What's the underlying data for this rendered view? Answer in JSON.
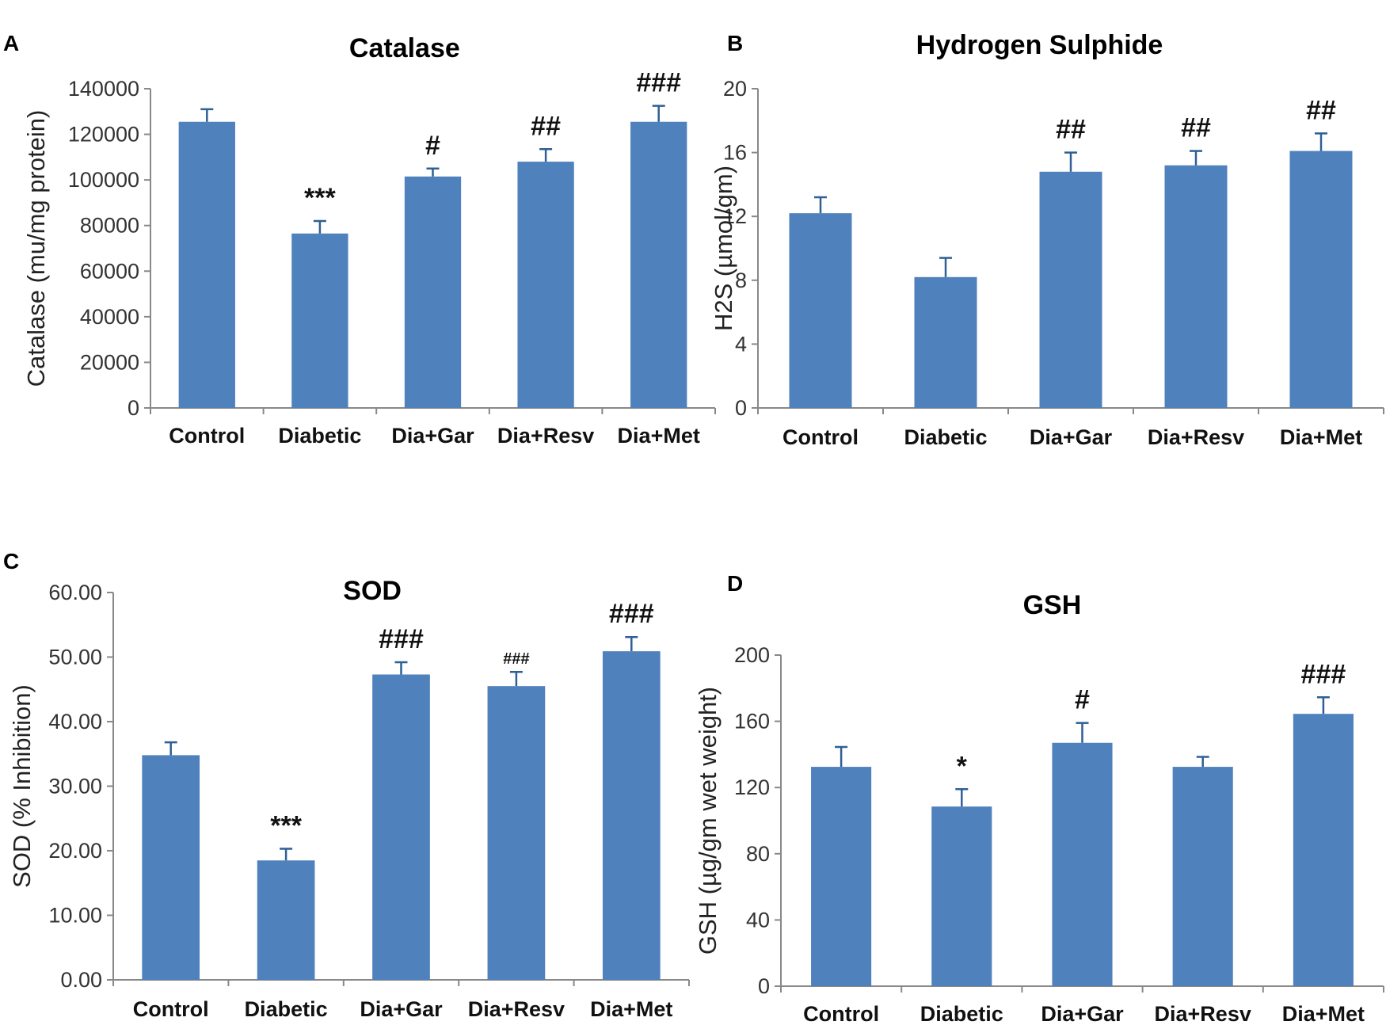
{
  "chart_data": [
    {
      "type": "bar",
      "panel": "A",
      "title": "Catalase",
      "ylabel": "Catalase (mu/mg protein)",
      "xlabel": "",
      "categories": [
        "Control",
        "Diabetic",
        "Dia+Gar",
        "Dia+Resv",
        "Dia+Met"
      ],
      "values": [
        125500,
        76500,
        101500,
        108000,
        125500
      ],
      "errors": [
        5500,
        5500,
        3500,
        5500,
        7000
      ],
      "significance": [
        "",
        "***",
        "#",
        "##",
        "###"
      ],
      "ylim": [
        0,
        140000
      ],
      "yticks": [
        0,
        20000,
        40000,
        60000,
        80000,
        100000,
        120000,
        140000
      ],
      "ytick_labels": [
        "0",
        "20000",
        "40000",
        "60000",
        "80000",
        "100000",
        "120000",
        "140000"
      ]
    },
    {
      "type": "bar",
      "panel": "B",
      "title": "Hydrogen Sulphide",
      "ylabel": "H2S (µmol/gm)",
      "xlabel": "",
      "categories": [
        "Control",
        "Diabetic",
        "Dia+Gar",
        "Dia+Resv",
        "Dia+Met"
      ],
      "values": [
        12.2,
        8.2,
        14.8,
        15.2,
        16.1
      ],
      "errors": [
        1.0,
        1.2,
        1.2,
        0.9,
        1.1
      ],
      "significance": [
        "",
        "",
        "##",
        "##",
        "##"
      ],
      "ylim": [
        0,
        20
      ],
      "yticks": [
        0,
        4,
        8,
        12,
        16,
        20
      ],
      "ytick_labels": [
        "0",
        "4",
        "8",
        "12",
        "16",
        "20"
      ]
    },
    {
      "type": "bar",
      "panel": "C",
      "title": "SOD",
      "ylabel": "SOD (% Inhibition)",
      "xlabel": "",
      "categories": [
        "Control",
        "Diabetic",
        "Dia+Gar",
        "Dia+Resv",
        "Dia+Met"
      ],
      "values": [
        34.8,
        18.5,
        47.3,
        45.5,
        50.9
      ],
      "errors": [
        2.0,
        1.8,
        1.9,
        2.2,
        2.2
      ],
      "significance": [
        "",
        "***",
        "###",
        "###",
        "###"
      ],
      "ylim": [
        0,
        60
      ],
      "yticks": [
        0,
        10,
        20,
        30,
        40,
        50,
        60
      ],
      "ytick_labels": [
        "0.00",
        "10.00",
        "20.00",
        "30.00",
        "40.00",
        "50.00",
        "60.00"
      ]
    },
    {
      "type": "bar",
      "panel": "D",
      "title": "GSH",
      "ylabel": "GSH (µg/gm wet weight)",
      "xlabel": "",
      "categories": [
        "Control",
        "Diabetic",
        "Dia+Gar",
        "Dia+Resv",
        "Dia+Met"
      ],
      "values": [
        132.5,
        108.5,
        147,
        132.5,
        164.5
      ],
      "errors": [
        12,
        10.5,
        12,
        6,
        10
      ],
      "significance": [
        "",
        "*",
        "#",
        "",
        "###"
      ],
      "ylim": [
        0,
        200
      ],
      "yticks": [
        0,
        40,
        80,
        120,
        160,
        200
      ],
      "ytick_labels": [
        "0",
        "40",
        "80",
        "120",
        "160",
        "200"
      ]
    }
  ]
}
